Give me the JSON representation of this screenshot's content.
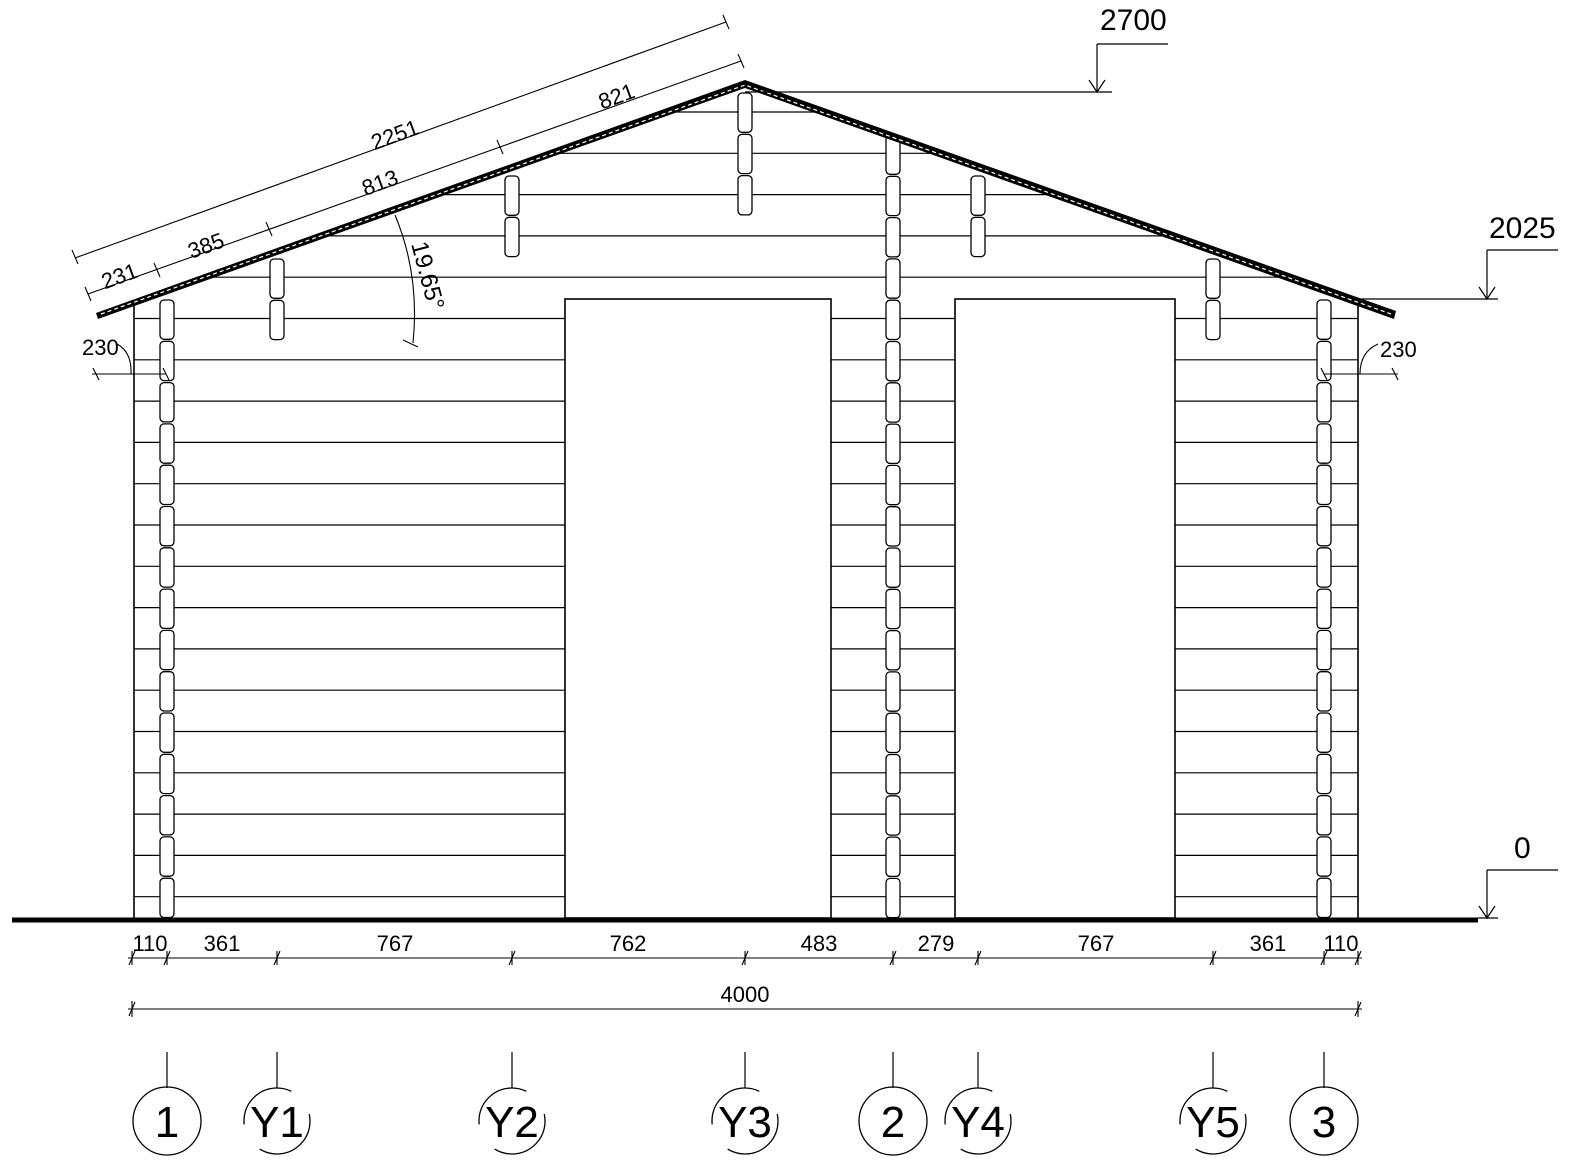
{
  "levels": {
    "ridge": "2700",
    "eaves": "2025",
    "ground": "0"
  },
  "roof_dims": {
    "total_slope": "2251",
    "upper_slope": "821",
    "middle_slope": "813",
    "lower_slope": "385",
    "eave_slope": "231",
    "pitch_angle": "19.65°"
  },
  "overhangs": {
    "left": "230",
    "right": "230"
  },
  "bottom_dims": [
    "110",
    "361",
    "767",
    "762",
    "483",
    "279",
    "767",
    "361",
    "110"
  ],
  "overall_width": "4000",
  "axes": [
    "1",
    "Y1",
    "Y2",
    "Y3",
    "2",
    "Y4",
    "Y5",
    "3"
  ],
  "colors": {
    "line": "#000000",
    "background": "#ffffff"
  }
}
